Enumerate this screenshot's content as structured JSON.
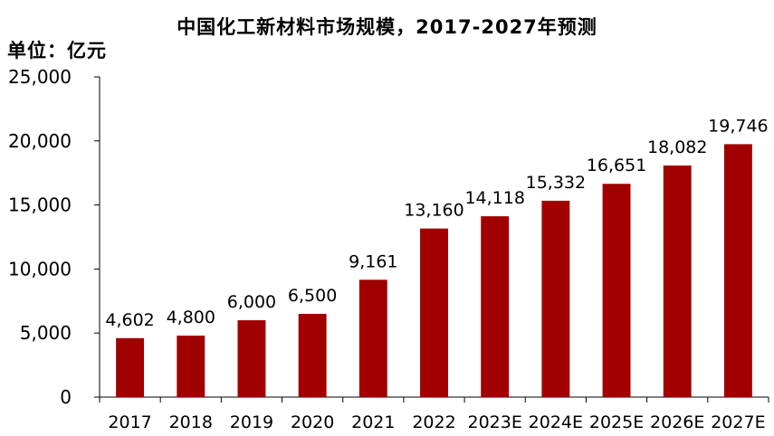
{
  "title": "中国化工新材料市场规模，2017-2027年预测",
  "unit_label": "单位：亿元",
  "colors": {
    "bar": "#a00000",
    "axis": "#000000",
    "text": "#000000"
  },
  "chart_data": {
    "type": "bar",
    "title": "中国化工新材料市场规模，2017-2027年预测",
    "xlabel": "",
    "ylabel": "单位：亿元",
    "categories": [
      "2017",
      "2018",
      "2019",
      "2020",
      "2021",
      "2022",
      "2023E",
      "2024E",
      "2025E",
      "2026E",
      "2027E"
    ],
    "values": [
      4602,
      4800,
      6000,
      6500,
      9161,
      13160,
      14118,
      15332,
      16651,
      18082,
      19746
    ],
    "value_labels": [
      "4,602",
      "4,800",
      "6,000",
      "6,500",
      "9,161",
      "13,160",
      "14,118",
      "15,332",
      "16,651",
      "18,082",
      "19,746"
    ],
    "ylim": [
      0,
      25000
    ],
    "yticks": [
      0,
      5000,
      10000,
      15000,
      20000,
      25000
    ],
    "ytick_labels": [
      "0",
      "5,000",
      "10,000",
      "15,000",
      "20,000",
      "25,000"
    ],
    "grid": false,
    "legend": "none"
  }
}
